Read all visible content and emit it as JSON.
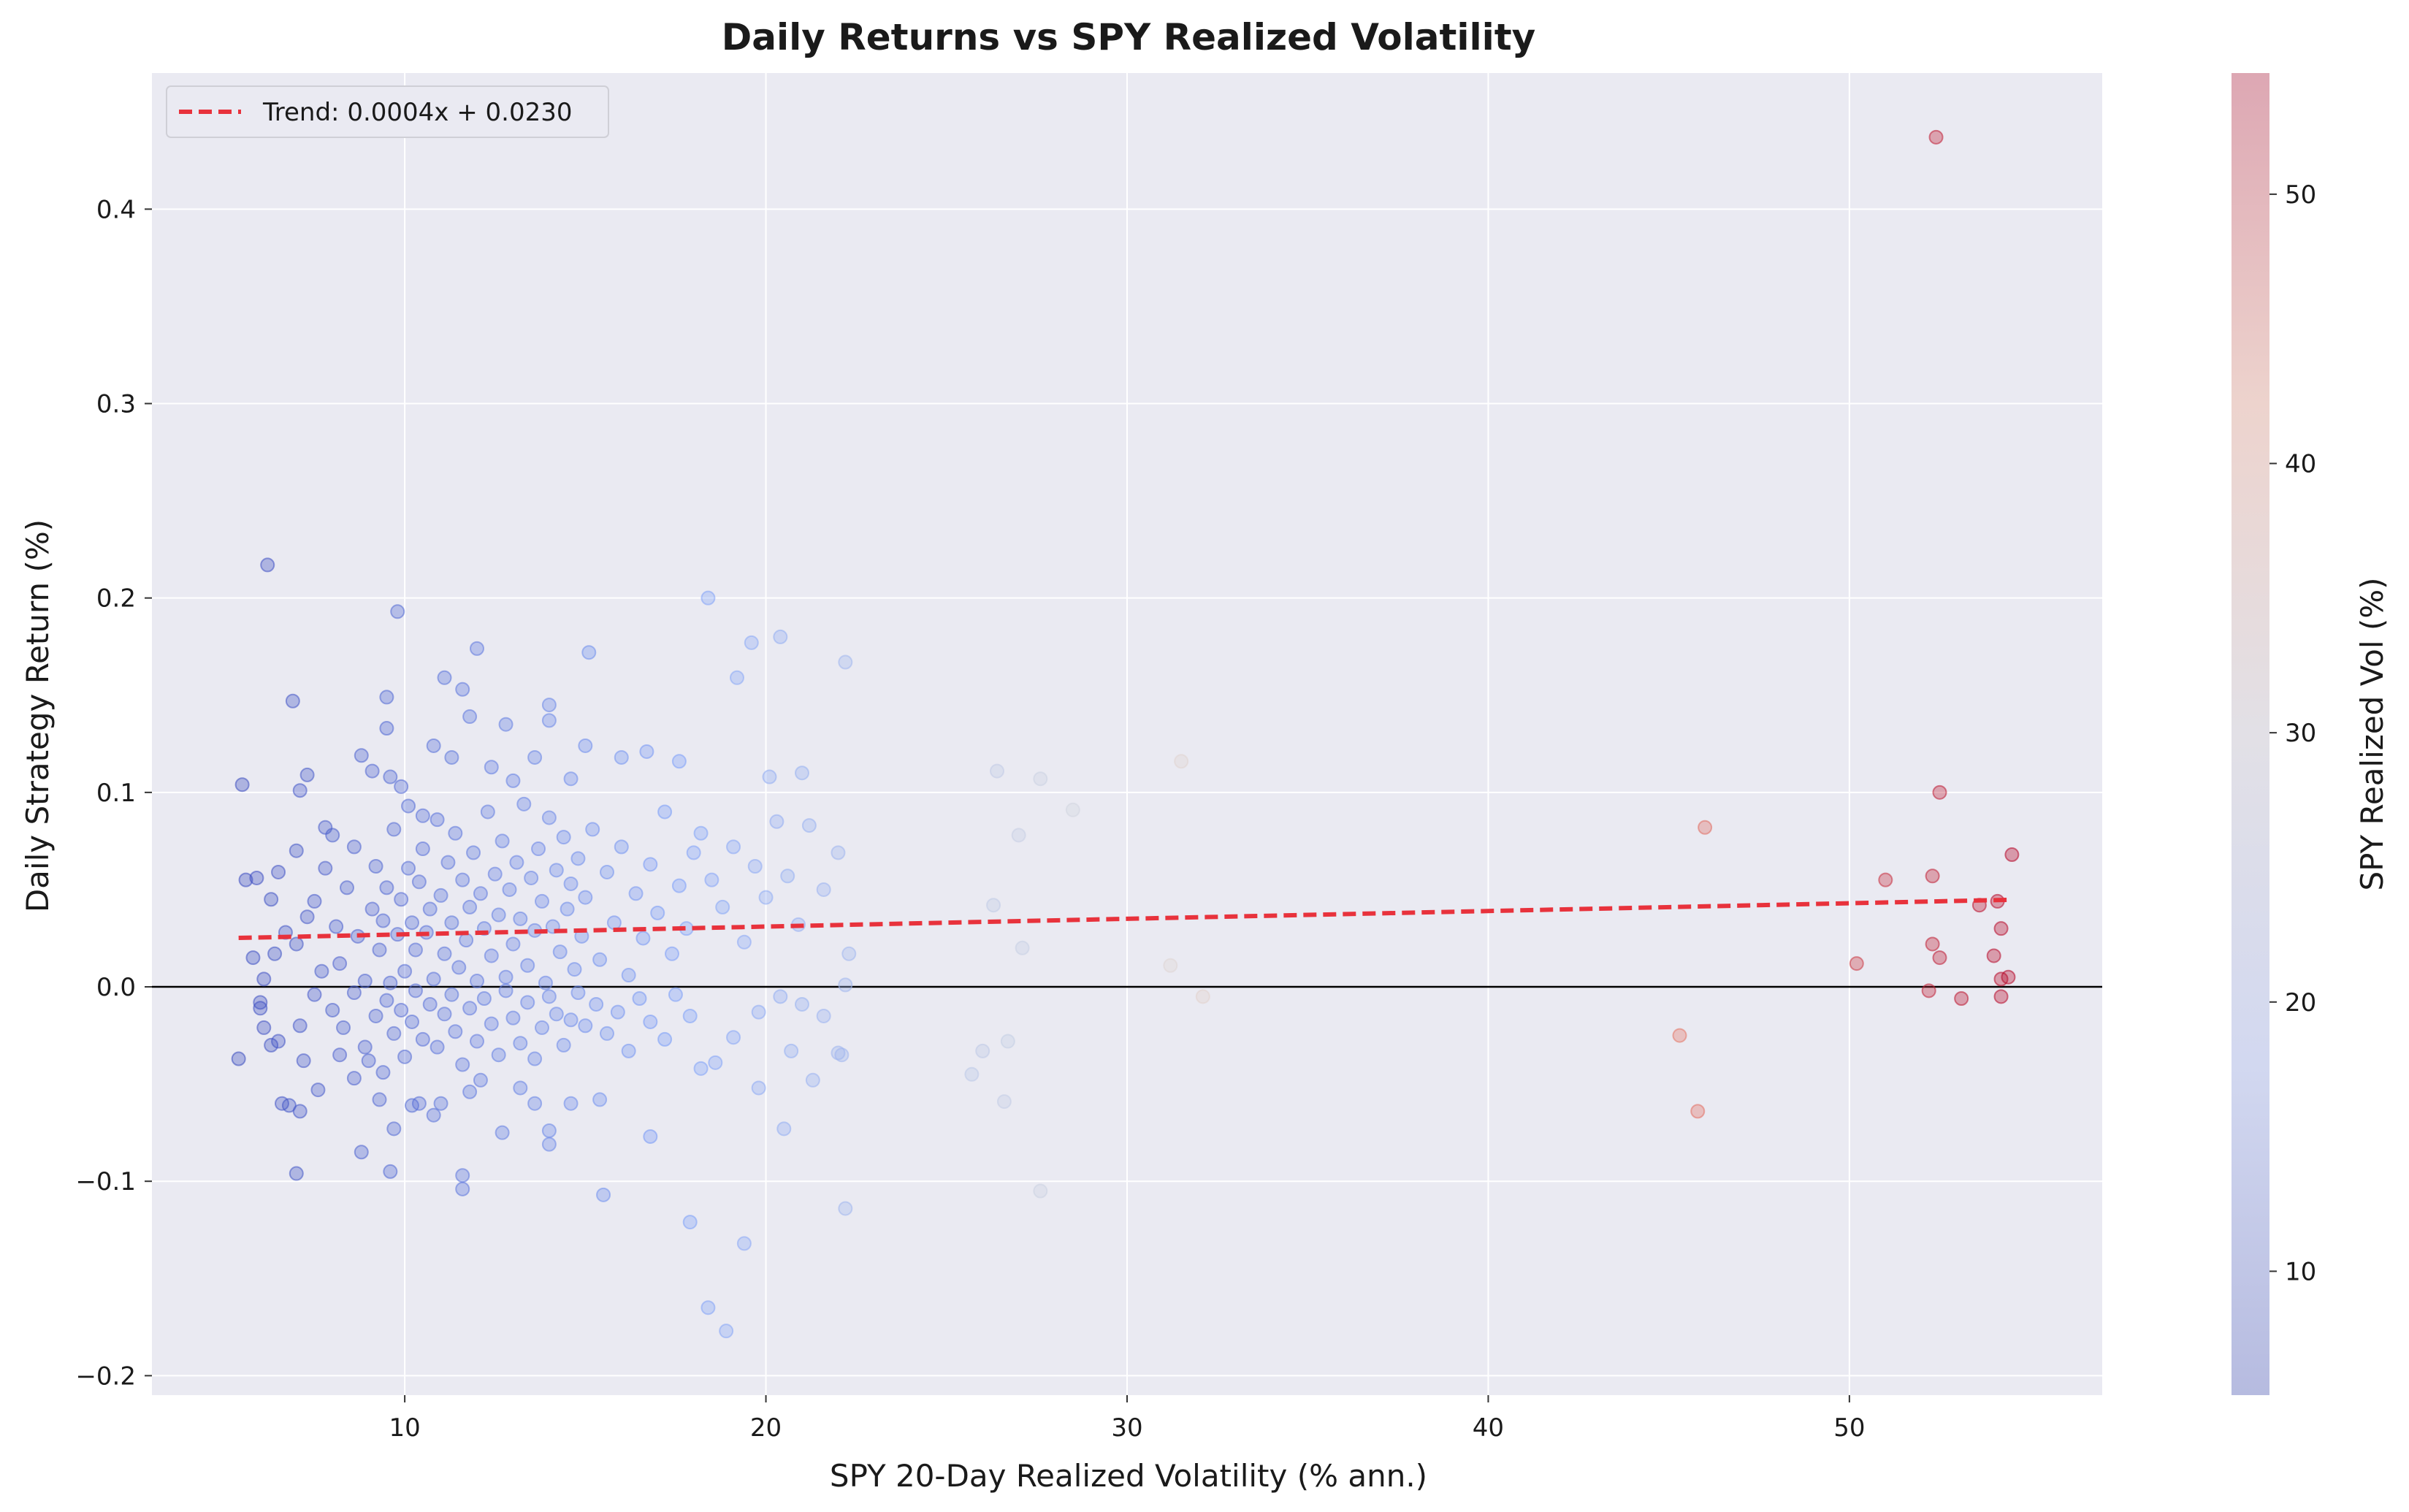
{
  "chart_data": {
    "type": "scatter",
    "title": "Daily Returns vs SPY Realized Volatility",
    "xlabel": "SPY 20-Day Realized Volatility (% ann.)",
    "ylabel": "Daily Strategy Return (%)",
    "xlim": [
      3,
      57
    ],
    "ylim": [
      -0.21,
      0.47
    ],
    "xticks": [
      "10",
      "20",
      "30",
      "40",
      "50"
    ],
    "yticks": [
      "−0.2",
      "−0.1",
      "0.0",
      "0.1",
      "0.2",
      "0.3",
      "0.4"
    ],
    "grid": true,
    "legend": {
      "placement": "top-left",
      "entries": [
        "Trend: 0.0004x + 0.0230"
      ]
    },
    "trendline": {
      "slope": 0.0004,
      "intercept": 0.023,
      "x_range": [
        5.4,
        54.4
      ],
      "color": "#e8323c"
    },
    "zero_line": 0.0,
    "colorbar": {
      "label": "SPY Realized Vol (%)",
      "range": [
        5.4,
        54.5
      ],
      "ticks": [
        "10",
        "20",
        "30",
        "40",
        "50"
      ],
      "colormap": "coolwarm",
      "alpha": 0.35
    },
    "series": [
      {
        "points": [
          [
            5.5,
            0.104
          ],
          [
            5.6,
            0.055
          ],
          [
            5.9,
            0.056
          ],
          [
            6.2,
            0.217
          ],
          [
            6.5,
            0.059
          ],
          [
            6.0,
            -0.011
          ],
          [
            6.3,
            0.045
          ],
          [
            6.9,
            0.147
          ],
          [
            7.1,
            0.101
          ],
          [
            7.3,
            0.109
          ],
          [
            7.0,
            0.07
          ],
          [
            7.8,
            0.082
          ],
          [
            8.0,
            0.078
          ],
          [
            8.8,
            0.119
          ],
          [
            9.1,
            0.111
          ],
          [
            9.5,
            0.149
          ],
          [
            9.5,
            0.133
          ],
          [
            9.8,
            0.193
          ],
          [
            9.6,
            0.108
          ],
          [
            9.9,
            0.103
          ],
          [
            10.1,
            0.093
          ],
          [
            10.5,
            0.088
          ],
          [
            10.8,
            0.124
          ],
          [
            11.1,
            0.159
          ],
          [
            11.3,
            0.118
          ],
          [
            11.6,
            0.153
          ],
          [
            11.8,
            0.139
          ],
          [
            12.0,
            0.174
          ],
          [
            12.4,
            0.113
          ],
          [
            12.8,
            0.135
          ],
          [
            13.0,
            0.106
          ],
          [
            13.6,
            0.118
          ],
          [
            14.0,
            0.145
          ],
          [
            14.0,
            0.137
          ],
          [
            14.6,
            0.107
          ],
          [
            15.0,
            0.124
          ],
          [
            15.1,
            0.172
          ],
          [
            16.0,
            0.118
          ],
          [
            16.7,
            0.121
          ],
          [
            17.6,
            0.116
          ],
          [
            18.4,
            0.2
          ],
          [
            19.2,
            0.159
          ],
          [
            19.6,
            0.177
          ],
          [
            20.4,
            0.18
          ],
          [
            20.1,
            0.108
          ],
          [
            21.0,
            0.11
          ],
          [
            22.2,
            0.167
          ],
          [
            5.4,
            -0.037
          ],
          [
            5.8,
            0.015
          ],
          [
            6.1,
            -0.021
          ],
          [
            6.3,
            -0.03
          ],
          [
            6.6,
            -0.06
          ],
          [
            6.8,
            -0.061
          ],
          [
            7.0,
            -0.096
          ],
          [
            7.1,
            -0.064
          ],
          [
            7.2,
            -0.038
          ],
          [
            7.6,
            -0.053
          ],
          [
            8.2,
            -0.035
          ],
          [
            8.6,
            -0.047
          ],
          [
            8.8,
            -0.085
          ],
          [
            9.0,
            -0.038
          ],
          [
            9.3,
            -0.058
          ],
          [
            9.6,
            -0.095
          ],
          [
            9.7,
            -0.073
          ],
          [
            10.2,
            -0.061
          ],
          [
            10.4,
            -0.06
          ],
          [
            10.8,
            -0.066
          ],
          [
            11.0,
            -0.06
          ],
          [
            11.6,
            -0.104
          ],
          [
            11.6,
            -0.097
          ],
          [
            11.8,
            -0.054
          ],
          [
            12.1,
            -0.048
          ],
          [
            12.7,
            -0.075
          ],
          [
            13.2,
            -0.052
          ],
          [
            13.6,
            -0.06
          ],
          [
            14.0,
            -0.081
          ],
          [
            14.0,
            -0.074
          ],
          [
            14.6,
            -0.06
          ],
          [
            15.5,
            -0.107
          ],
          [
            15.4,
            -0.058
          ],
          [
            16.8,
            -0.077
          ],
          [
            17.9,
            -0.121
          ],
          [
            18.4,
            -0.165
          ],
          [
            18.9,
            -0.177
          ],
          [
            19.4,
            -0.132
          ],
          [
            19.8,
            -0.052
          ],
          [
            20.5,
            -0.073
          ],
          [
            22.2,
            -0.114
          ],
          [
            21.3,
            -0.048
          ],
          [
            22.0,
            -0.034
          ],
          [
            6.1,
            0.004
          ],
          [
            6.4,
            0.017
          ],
          [
            6.7,
            0.028
          ],
          [
            7.0,
            0.022
          ],
          [
            7.3,
            0.036
          ],
          [
            7.5,
            0.044
          ],
          [
            7.7,
            0.008
          ],
          [
            7.8,
            0.061
          ],
          [
            8.1,
            0.031
          ],
          [
            8.2,
            0.012
          ],
          [
            8.4,
            0.051
          ],
          [
            8.6,
            0.072
          ],
          [
            8.7,
            0.026
          ],
          [
            8.9,
            0.003
          ],
          [
            9.1,
            0.04
          ],
          [
            9.2,
            0.062
          ],
          [
            9.3,
            0.019
          ],
          [
            9.4,
            0.034
          ],
          [
            9.5,
            0.051
          ],
          [
            9.6,
            0.002
          ],
          [
            9.7,
            0.081
          ],
          [
            9.8,
            0.027
          ],
          [
            9.9,
            0.045
          ],
          [
            10.0,
            0.008
          ],
          [
            10.1,
            0.061
          ],
          [
            10.2,
            0.033
          ],
          [
            10.3,
            0.019
          ],
          [
            10.4,
            0.054
          ],
          [
            10.5,
            0.071
          ],
          [
            10.6,
            0.028
          ],
          [
            10.7,
            0.04
          ],
          [
            10.8,
            0.004
          ],
          [
            10.9,
            0.086
          ],
          [
            11.0,
            0.047
          ],
          [
            11.1,
            0.017
          ],
          [
            11.2,
            0.064
          ],
          [
            11.3,
            0.033
          ],
          [
            11.4,
            0.079
          ],
          [
            11.5,
            0.01
          ],
          [
            11.6,
            0.055
          ],
          [
            11.7,
            0.024
          ],
          [
            11.8,
            0.041
          ],
          [
            11.9,
            0.069
          ],
          [
            12.0,
            0.003
          ],
          [
            12.1,
            0.048
          ],
          [
            12.2,
            0.03
          ],
          [
            12.3,
            0.09
          ],
          [
            12.4,
            0.016
          ],
          [
            12.5,
            0.058
          ],
          [
            12.6,
            0.037
          ],
          [
            12.7,
            0.075
          ],
          [
            12.8,
            0.005
          ],
          [
            12.9,
            0.05
          ],
          [
            13.0,
            0.022
          ],
          [
            13.1,
            0.064
          ],
          [
            13.2,
            0.035
          ],
          [
            13.3,
            0.094
          ],
          [
            13.4,
            0.011
          ],
          [
            13.5,
            0.056
          ],
          [
            13.6,
            0.029
          ],
          [
            13.7,
            0.071
          ],
          [
            13.8,
            0.044
          ],
          [
            13.9,
            0.002
          ],
          [
            14.0,
            0.087
          ],
          [
            14.1,
            0.031
          ],
          [
            14.2,
            0.06
          ],
          [
            14.3,
            0.018
          ],
          [
            14.4,
            0.077
          ],
          [
            14.5,
            0.04
          ],
          [
            14.6,
            0.053
          ],
          [
            14.7,
            0.009
          ],
          [
            14.8,
            0.066
          ],
          [
            14.9,
            0.026
          ],
          [
            15.0,
            0.046
          ],
          [
            15.2,
            0.081
          ],
          [
            15.4,
            0.014
          ],
          [
            15.6,
            0.059
          ],
          [
            15.8,
            0.033
          ],
          [
            16.0,
            0.072
          ],
          [
            16.2,
            0.006
          ],
          [
            16.4,
            0.048
          ],
          [
            16.6,
            0.025
          ],
          [
            16.8,
            0.063
          ],
          [
            17.0,
            0.038
          ],
          [
            17.2,
            0.09
          ],
          [
            17.4,
            0.017
          ],
          [
            17.6,
            0.052
          ],
          [
            17.8,
            0.03
          ],
          [
            18.0,
            0.069
          ],
          [
            18.2,
            0.079
          ],
          [
            18.5,
            0.055
          ],
          [
            18.8,
            0.041
          ],
          [
            19.1,
            0.072
          ],
          [
            19.4,
            0.023
          ],
          [
            19.7,
            0.062
          ],
          [
            20.0,
            0.046
          ],
          [
            20.3,
            0.085
          ],
          [
            20.6,
            0.057
          ],
          [
            20.9,
            0.032
          ],
          [
            21.2,
            0.083
          ],
          [
            21.6,
            0.05
          ],
          [
            22.0,
            0.069
          ],
          [
            22.3,
            0.017
          ],
          [
            22.2,
            0.001
          ],
          [
            6.0,
            -0.008
          ],
          [
            6.5,
            -0.028
          ],
          [
            7.1,
            -0.02
          ],
          [
            7.5,
            -0.004
          ],
          [
            8.0,
            -0.012
          ],
          [
            8.3,
            -0.021
          ],
          [
            8.6,
            -0.003
          ],
          [
            8.9,
            -0.031
          ],
          [
            9.2,
            -0.015
          ],
          [
            9.4,
            -0.044
          ],
          [
            9.5,
            -0.007
          ],
          [
            9.7,
            -0.024
          ],
          [
            9.9,
            -0.012
          ],
          [
            10.0,
            -0.036
          ],
          [
            10.2,
            -0.018
          ],
          [
            10.3,
            -0.002
          ],
          [
            10.5,
            -0.027
          ],
          [
            10.7,
            -0.009
          ],
          [
            10.9,
            -0.031
          ],
          [
            11.1,
            -0.014
          ],
          [
            11.3,
            -0.004
          ],
          [
            11.4,
            -0.023
          ],
          [
            11.6,
            -0.04
          ],
          [
            11.8,
            -0.011
          ],
          [
            12.0,
            -0.028
          ],
          [
            12.2,
            -0.006
          ],
          [
            12.4,
            -0.019
          ],
          [
            12.6,
            -0.035
          ],
          [
            12.8,
            -0.002
          ],
          [
            13.0,
            -0.016
          ],
          [
            13.2,
            -0.029
          ],
          [
            13.4,
            -0.008
          ],
          [
            13.6,
            -0.037
          ],
          [
            13.8,
            -0.021
          ],
          [
            14.0,
            -0.005
          ],
          [
            14.2,
            -0.014
          ],
          [
            14.4,
            -0.03
          ],
          [
            14.6,
            -0.017
          ],
          [
            14.8,
            -0.003
          ],
          [
            15.0,
            -0.02
          ],
          [
            15.3,
            -0.009
          ],
          [
            15.6,
            -0.024
          ],
          [
            15.9,
            -0.013
          ],
          [
            16.2,
            -0.033
          ],
          [
            16.5,
            -0.006
          ],
          [
            16.8,
            -0.018
          ],
          [
            17.2,
            -0.027
          ],
          [
            17.5,
            -0.004
          ],
          [
            17.9,
            -0.015
          ],
          [
            18.2,
            -0.042
          ],
          [
            18.6,
            -0.039
          ],
          [
            19.1,
            -0.026
          ],
          [
            19.8,
            -0.013
          ],
          [
            20.4,
            -0.005
          ],
          [
            20.7,
            -0.033
          ],
          [
            21.0,
            -0.009
          ],
          [
            21.6,
            -0.015
          ],
          [
            22.1,
            -0.035
          ],
          [
            26.0,
            -0.033
          ],
          [
            25.7,
            -0.045
          ],
          [
            26.3,
            0.042
          ],
          [
            26.4,
            0.111
          ],
          [
            26.6,
            -0.059
          ],
          [
            26.7,
            -0.028
          ],
          [
            27.1,
            0.02
          ],
          [
            27.0,
            0.078
          ],
          [
            27.6,
            0.107
          ],
          [
            27.6,
            -0.105
          ],
          [
            28.5,
            0.091
          ],
          [
            31.2,
            0.011
          ],
          [
            31.5,
            0.116
          ],
          [
            32.1,
            -0.005
          ],
          [
            45.3,
            -0.025
          ],
          [
            45.8,
            -0.064
          ],
          [
            46.0,
            0.082
          ],
          [
            50.2,
            0.012
          ],
          [
            51.0,
            0.055
          ],
          [
            52.2,
            -0.002
          ],
          [
            52.3,
            0.022
          ],
          [
            52.3,
            0.057
          ],
          [
            52.4,
            0.437
          ],
          [
            52.5,
            0.1
          ],
          [
            52.5,
            0.015
          ],
          [
            53.1,
            -0.006
          ],
          [
            53.6,
            0.042
          ],
          [
            54.0,
            0.016
          ],
          [
            54.1,
            0.044
          ],
          [
            54.2,
            0.004
          ],
          [
            54.2,
            -0.005
          ],
          [
            54.2,
            0.03
          ],
          [
            54.4,
            0.005
          ],
          [
            54.5,
            0.068
          ]
        ]
      }
    ]
  }
}
